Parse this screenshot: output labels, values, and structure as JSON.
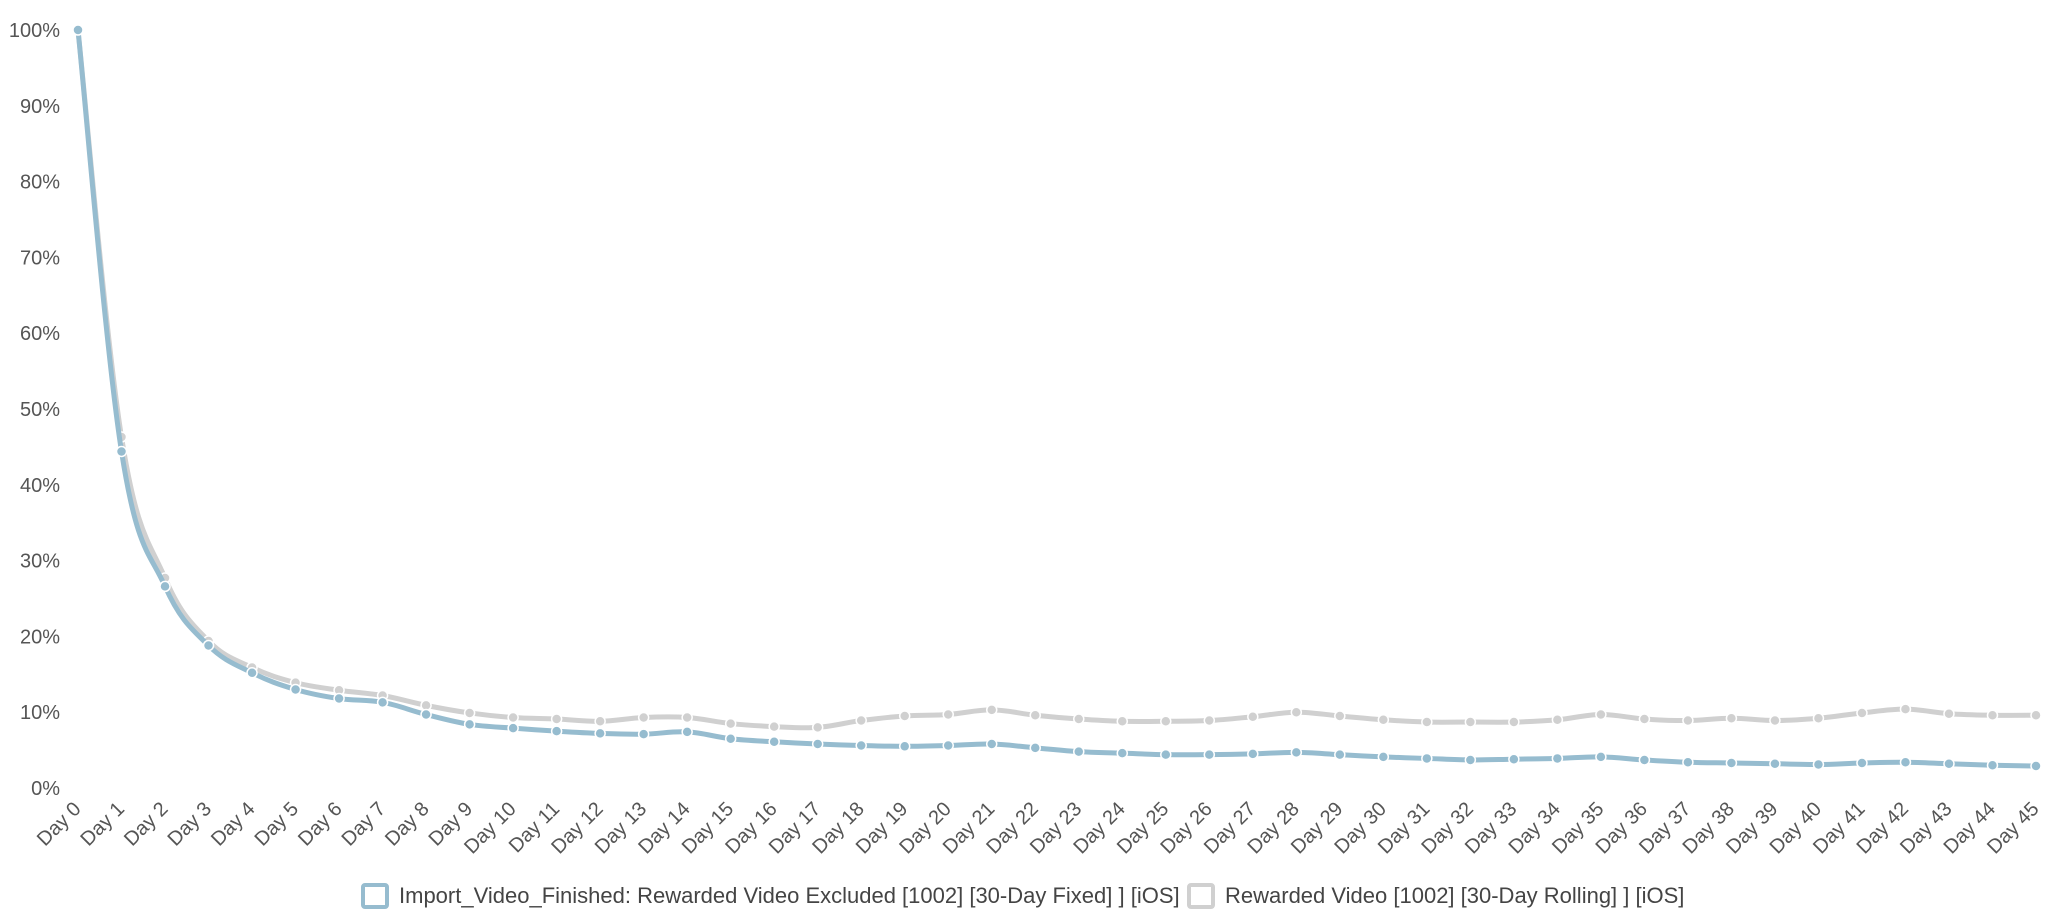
{
  "chart_data": {
    "type": "line",
    "title": "",
    "xlabel": "",
    "ylabel": "",
    "ylim": [
      0,
      100
    ],
    "y_ticks": [
      "0%",
      "10%",
      "20%",
      "30%",
      "40%",
      "50%",
      "60%",
      "70%",
      "80%",
      "90%",
      "100%"
    ],
    "grid": false,
    "legend_position": "bottom-center",
    "categories": [
      "Day 0",
      "Day 1",
      "Day 2",
      "Day 3",
      "Day 4",
      "Day 5",
      "Day 6",
      "Day 7",
      "Day 8",
      "Day 9",
      "Day 10",
      "Day 11",
      "Day 12",
      "Day 13",
      "Day 14",
      "Day 15",
      "Day 16",
      "Day 17",
      "Day 18",
      "Day 19",
      "Day 20",
      "Day 21",
      "Day 22",
      "Day 23",
      "Day 24",
      "Day 25",
      "Day 26",
      "Day 27",
      "Day 28",
      "Day 29",
      "Day 30",
      "Day 31",
      "Day 32",
      "Day 33",
      "Day 34",
      "Day 35",
      "Day 36",
      "Day 37",
      "Day 38",
      "Day 39",
      "Day 40",
      "Day 41",
      "Day 42",
      "Day 43",
      "Day 44",
      "Day 45"
    ],
    "series": [
      {
        "name": "Rewarded Video [1002] [30-Day Rolling] ] [iOS]",
        "color": "#d0d0d0",
        "values": [
          100,
          46.3,
          27.7,
          19.4,
          15.9,
          13.9,
          12.9,
          12.2,
          10.9,
          9.9,
          9.3,
          9.1,
          8.8,
          9.3,
          9.3,
          8.5,
          8.1,
          8.0,
          8.9,
          9.5,
          9.7,
          10.3,
          9.6,
          9.1,
          8.8,
          8.8,
          8.9,
          9.4,
          10.0,
          9.5,
          9.0,
          8.7,
          8.7,
          8.7,
          9.0,
          9.7,
          9.1,
          8.9,
          9.2,
          8.9,
          9.2,
          9.9,
          10.4,
          9.8,
          9.6,
          9.6
        ]
      },
      {
        "name": "Import_Video_Finished: Rewarded Video Excluded [1002] [30-Day Fixed] ] [iOS]",
        "color": "#96bccf",
        "values": [
          100,
          44.4,
          26.6,
          18.8,
          15.2,
          13.0,
          11.8,
          11.3,
          9.7,
          8.4,
          7.9,
          7.5,
          7.2,
          7.1,
          7.4,
          6.5,
          6.1,
          5.8,
          5.6,
          5.5,
          5.6,
          5.8,
          5.3,
          4.8,
          4.6,
          4.4,
          4.4,
          4.5,
          4.7,
          4.4,
          4.1,
          3.9,
          3.7,
          3.8,
          3.9,
          4.1,
          3.7,
          3.4,
          3.3,
          3.2,
          3.1,
          3.3,
          3.4,
          3.2,
          3.0,
          2.9
        ]
      }
    ]
  },
  "legend": [
    {
      "label": "Import_Video_Finished: Rewarded Video Excluded [1002] [30-Day Fixed] ] [iOS]",
      "color": "#96bccf"
    },
    {
      "label": "Rewarded Video [1002] [30-Day Rolling] ] [iOS]",
      "color": "#d0d0d0"
    }
  ]
}
